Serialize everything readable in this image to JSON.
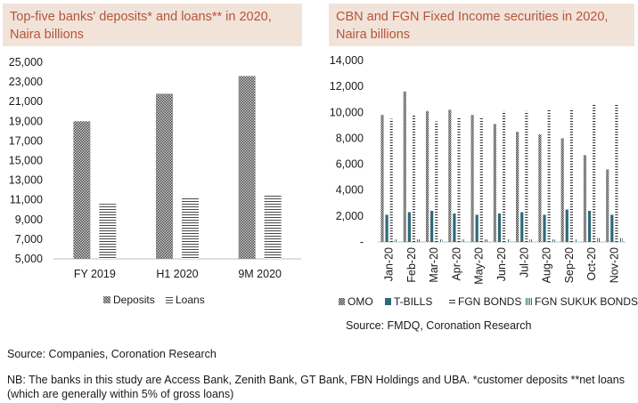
{
  "left_chart": {
    "title": "Top-five banks' deposits* and loans** in 2020, Naira billions"
  },
  "right_chart": {
    "title": "CBN and FGN Fixed Income securities in 2020, Naira billions"
  },
  "source_right": "Source: FMDQ, Coronation Research",
  "source_left": "Source:  Companies, Coronation Research",
  "note": "NB: The banks in this study are Access Bank, Zenith Bank, GT Bank, FBN Holdings and UBA. *customer deposits **net loans (which are generally within 5% of gross loans)",
  "colors": {
    "title_bg": "#f2e3d9",
    "title_text": "#b5553a",
    "teal": "#2e6a7a",
    "dark": "#333333"
  },
  "chart_data": [
    {
      "type": "bar",
      "title": "Top-five banks' deposits* and loans** in 2020, Naira billions",
      "categories": [
        "FY 2019",
        "H1 2020",
        "9M 2020"
      ],
      "series": [
        {
          "name": "Deposits",
          "values": [
            19000,
            21800,
            23600
          ],
          "pattern": "checker"
        },
        {
          "name": "Loans",
          "values": [
            10600,
            11300,
            11600
          ],
          "pattern": "hlines"
        }
      ],
      "yticks": [
        "25,000",
        "23,000",
        "21,000",
        "19,000",
        "17,000",
        "15,000",
        "13,000",
        "11,000",
        "9,000",
        "7,000",
        "5,000"
      ],
      "ylim": [
        5000,
        25000
      ],
      "legend": "bottom"
    },
    {
      "type": "bar",
      "title": "CBN and FGN Fixed Income securities in 2020, Naira billions",
      "categories": [
        "Jan-20",
        "Feb-20",
        "Mar-20",
        "Apr-20",
        "May-20",
        "Jun-20",
        "Jul-20",
        "Aug-20",
        "Sep-20",
        "Oct-20",
        "Nov-20"
      ],
      "series": [
        {
          "name": "OMO",
          "values": [
            9800,
            11600,
            10100,
            10200,
            9800,
            9100,
            8500,
            8300,
            8000,
            6700,
            5600
          ],
          "pattern": "checker"
        },
        {
          "name": "T-BILLS",
          "values": [
            2100,
            2300,
            2400,
            2200,
            2100,
            2200,
            2300,
            2100,
            2500,
            2400,
            2100
          ],
          "pattern": "solid"
        },
        {
          "name": "FGN BONDS",
          "values": [
            9500,
            9800,
            9300,
            9600,
            9600,
            10100,
            10100,
            10300,
            10300,
            10600,
            10600
          ],
          "pattern": "hlines"
        },
        {
          "name": "FGN SUKUK BONDS",
          "values": [
            200,
            200,
            200,
            200,
            200,
            200,
            200,
            200,
            200,
            300,
            300
          ],
          "pattern": "vlines"
        }
      ],
      "yticks": [
        "14,000",
        "12,000",
        "10,000",
        "8,000",
        "6,000",
        "4,000",
        "2,000",
        "-"
      ],
      "ylim": [
        0,
        14000
      ],
      "legend": "bottom"
    }
  ]
}
